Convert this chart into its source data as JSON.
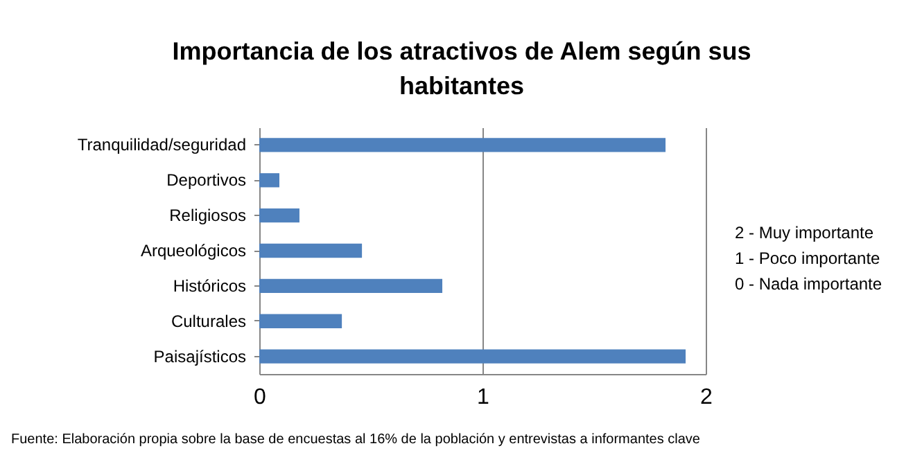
{
  "chart_data": {
    "type": "bar",
    "orientation": "horizontal",
    "title": "Importancia de los atractivos de Alem según sus habitantes",
    "categories": [
      "Tranquilidad/seguridad",
      "Deportivos",
      "Religiosos",
      "Arqueológicos",
      "Históricos",
      "Culturales",
      "Paisajísticos"
    ],
    "values": [
      1.82,
      0.09,
      0.18,
      0.46,
      0.82,
      0.37,
      1.91
    ],
    "color": "#4f81bd",
    "xlim": [
      0,
      2
    ],
    "xticks": [
      0,
      1,
      2
    ],
    "grid": "x",
    "annotations": [
      "2 - Muy importante",
      "1 - Poco importante",
      "0 - Nada importante",
      "Fuente: Elaboración propia sobre la base de encuestas al 16%  de la población y entrevistas a informantes clave"
    ]
  }
}
